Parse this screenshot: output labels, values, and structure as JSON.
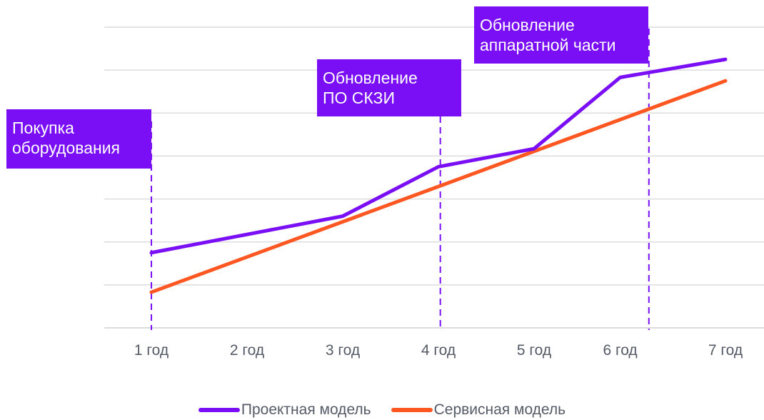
{
  "colors": {
    "accent_purple": "#7a0ff5",
    "accent_orange": "#ff5722",
    "grid": "#dcdcdc",
    "tick_text": "#555b66"
  },
  "chart_data": {
    "type": "line",
    "title": "",
    "xlabel": "",
    "ylabel": "",
    "categories": [
      "1 год",
      "2 год",
      "3 год",
      "4 год",
      "5 год",
      "6 год",
      "7 год"
    ],
    "x": [
      1,
      2,
      3,
      4,
      5,
      5.9,
      7
    ],
    "ylim": [
      0,
      7
    ],
    "grid": true,
    "y_tick_labels": false,
    "legend_position": "bottom-center",
    "series": [
      {
        "name": "Проектная модель",
        "color": "#7a0ff5",
        "x": [
          1,
          3,
          4,
          5,
          5.9,
          7
        ],
        "values": [
          1.75,
          2.6,
          3.75,
          4.17,
          5.83,
          6.25
        ]
      },
      {
        "name": "Сервисная модель",
        "color": "#ff5722",
        "x": [
          1,
          7
        ],
        "values": [
          0.83,
          5.75
        ]
      }
    ],
    "annotations": [
      {
        "text": "Покупка\nоборудования",
        "x": 1.0
      },
      {
        "text": "Обновление\nПО СКЗИ",
        "x": 4.02
      },
      {
        "text": "Обновление\nаппаратной части",
        "x": 6.2
      }
    ]
  }
}
